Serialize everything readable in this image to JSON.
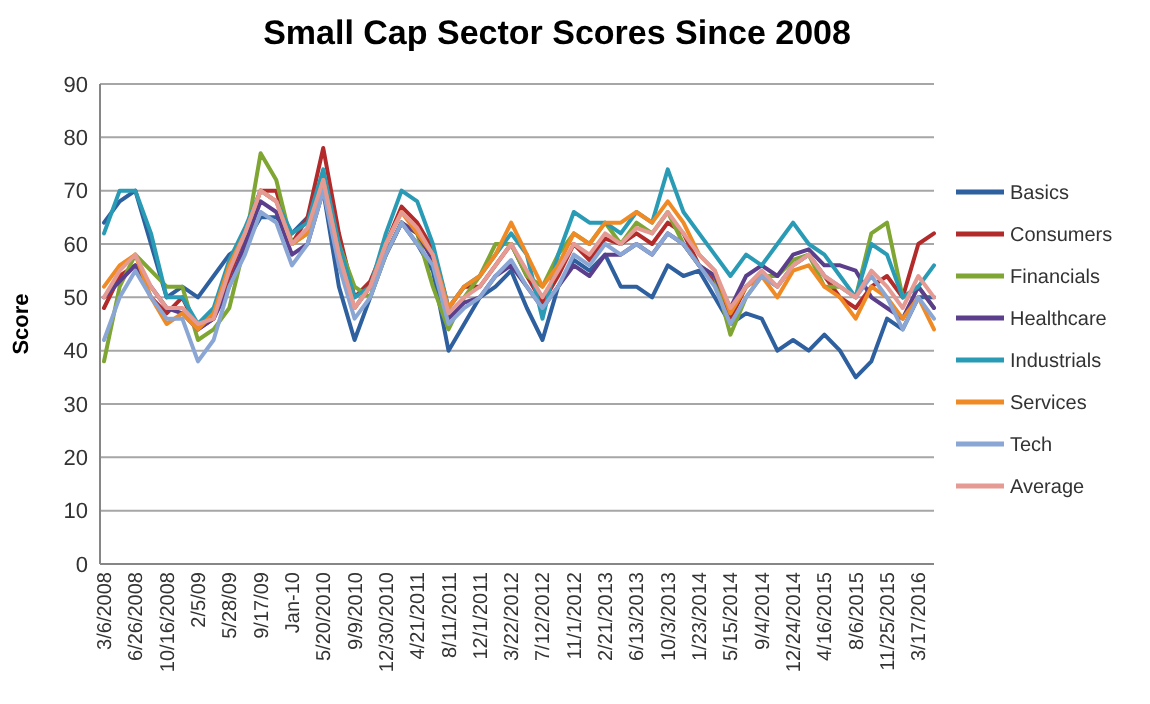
{
  "chart_data": {
    "type": "line",
    "title": "Small Cap Sector Scores Since 2008",
    "ylabel": "Score",
    "categories": [
      "3/6/2008",
      null,
      "6/26/2008",
      null,
      "10/16/2008",
      null,
      "2/5/09",
      null,
      "5/28/09",
      null,
      "9/17/09",
      null,
      "Jan-10",
      null,
      "5/20/2010",
      null,
      "9/9/2010",
      null,
      "12/30/2010",
      null,
      "4/21/2011",
      null,
      "8/11/2011",
      null,
      "12/1/2011",
      null,
      "3/22/2012",
      null,
      "7/12/2012",
      null,
      "11/1/2012",
      null,
      "2/21/2013",
      null,
      "6/13/2013",
      null,
      "10/3/2013",
      null,
      "1/23/2014",
      null,
      "5/15/2014",
      null,
      "9/4/2014",
      null,
      "12/24/2014",
      null,
      "4/16/2015",
      null,
      "8/6/2015",
      null,
      "11/25/2015",
      null,
      "3/17/2016",
      null
    ],
    "series": [
      {
        "name": "Basics",
        "color": "#2e5f9e",
        "values": [
          64,
          68,
          70,
          60,
          50,
          52,
          50,
          54,
          58,
          60,
          65,
          65,
          62,
          65,
          70,
          52,
          42,
          50,
          58,
          64,
          60,
          55,
          40,
          45,
          50,
          52,
          55,
          48,
          42,
          52,
          57,
          55,
          58,
          52,
          52,
          50,
          56,
          54,
          55,
          50,
          45,
          47,
          46,
          40,
          42,
          40,
          43,
          40,
          35,
          38,
          46,
          44,
          50,
          50
        ]
      },
      {
        "name": "Consumers",
        "color": "#b22a2a",
        "values": [
          48,
          54,
          56,
          50,
          47,
          50,
          44,
          46,
          54,
          62,
          70,
          70,
          60,
          65,
          78,
          62,
          50,
          53,
          60,
          67,
          64,
          59,
          48,
          52,
          52,
          56,
          60,
          54,
          49,
          54,
          60,
          57,
          61,
          60,
          62,
          60,
          64,
          62,
          56,
          53,
          46,
          52,
          54,
          52,
          56,
          58,
          54,
          50,
          48,
          52,
          54,
          50,
          60,
          62
        ]
      },
      {
        "name": "Financials",
        "color": "#7fa532",
        "values": [
          38,
          52,
          58,
          55,
          52,
          52,
          42,
          44,
          48,
          60,
          77,
          72,
          60,
          62,
          72,
          60,
          52,
          50,
          58,
          64,
          62,
          52,
          44,
          50,
          54,
          60,
          60,
          54,
          52,
          58,
          62,
          60,
          64,
          60,
          64,
          62,
          66,
          60,
          56,
          54,
          43,
          50,
          54,
          54,
          57,
          58,
          52,
          52,
          50,
          62,
          64,
          50,
          52,
          48
        ]
      },
      {
        "name": "Healthcare",
        "color": "#5b3f8c",
        "values": [
          50,
          53,
          56,
          52,
          48,
          47,
          44,
          46,
          52,
          60,
          68,
          66,
          58,
          60,
          70,
          56,
          48,
          52,
          58,
          64,
          62,
          57,
          46,
          49,
          50,
          54,
          56,
          52,
          48,
          52,
          56,
          54,
          58,
          58,
          60,
          58,
          62,
          60,
          56,
          54,
          48,
          54,
          56,
          54,
          58,
          59,
          56,
          56,
          55,
          50,
          48,
          46,
          52,
          48
        ]
      },
      {
        "name": "Industrials",
        "color": "#2a9bb5",
        "values": [
          62,
          70,
          70,
          62,
          50,
          50,
          45,
          48,
          57,
          63,
          70,
          68,
          62,
          64,
          74,
          60,
          50,
          52,
          62,
          70,
          68,
          60,
          48,
          52,
          54,
          58,
          62,
          58,
          46,
          58,
          66,
          64,
          64,
          62,
          66,
          64,
          74,
          66,
          62,
          58,
          54,
          58,
          56,
          60,
          64,
          60,
          58,
          54,
          50,
          60,
          58,
          50,
          52,
          56
        ]
      },
      {
        "name": "Services",
        "color": "#f08a24",
        "values": [
          52,
          56,
          58,
          50,
          45,
          47,
          44,
          47,
          56,
          62,
          70,
          68,
          60,
          62,
          72,
          58,
          48,
          52,
          60,
          66,
          62,
          58,
          48,
          52,
          54,
          58,
          64,
          58,
          52,
          56,
          62,
          60,
          64,
          64,
          66,
          64,
          68,
          64,
          58,
          55,
          47,
          52,
          54,
          50,
          55,
          56,
          52,
          50,
          46,
          52,
          50,
          46,
          50,
          44
        ]
      },
      {
        "name": "Tech",
        "color": "#8aa6d4",
        "values": [
          42,
          50,
          55,
          50,
          46,
          46,
          38,
          42,
          52,
          58,
          66,
          64,
          56,
          60,
          70,
          56,
          46,
          50,
          58,
          64,
          60,
          56,
          45,
          48,
          50,
          54,
          57,
          52,
          48,
          52,
          58,
          56,
          60,
          58,
          60,
          58,
          62,
          60,
          56,
          52,
          45,
          50,
          54,
          52,
          56,
          58,
          54,
          52,
          50,
          54,
          50,
          44,
          50,
          46
        ]
      },
      {
        "name": "Average",
        "color": "#e59a94",
        "values": [
          50,
          55,
          58,
          52,
          48,
          48,
          45,
          46,
          55,
          62,
          70,
          68,
          60,
          63,
          72,
          58,
          48,
          52,
          60,
          66,
          63,
          58,
          47,
          50,
          52,
          56,
          60,
          55,
          50,
          55,
          60,
          58,
          62,
          60,
          63,
          62,
          66,
          62,
          58,
          55,
          48,
          52,
          55,
          52,
          56,
          58,
          54,
          52,
          50,
          55,
          52,
          48,
          54,
          50
        ]
      }
    ],
    "ylim": [
      0,
      90
    ],
    "yticks": [
      0,
      10,
      20,
      30,
      40,
      50,
      60,
      70,
      80,
      90
    ],
    "grid": "y",
    "legend": "right",
    "marker": "none",
    "line_style": "solid"
  }
}
